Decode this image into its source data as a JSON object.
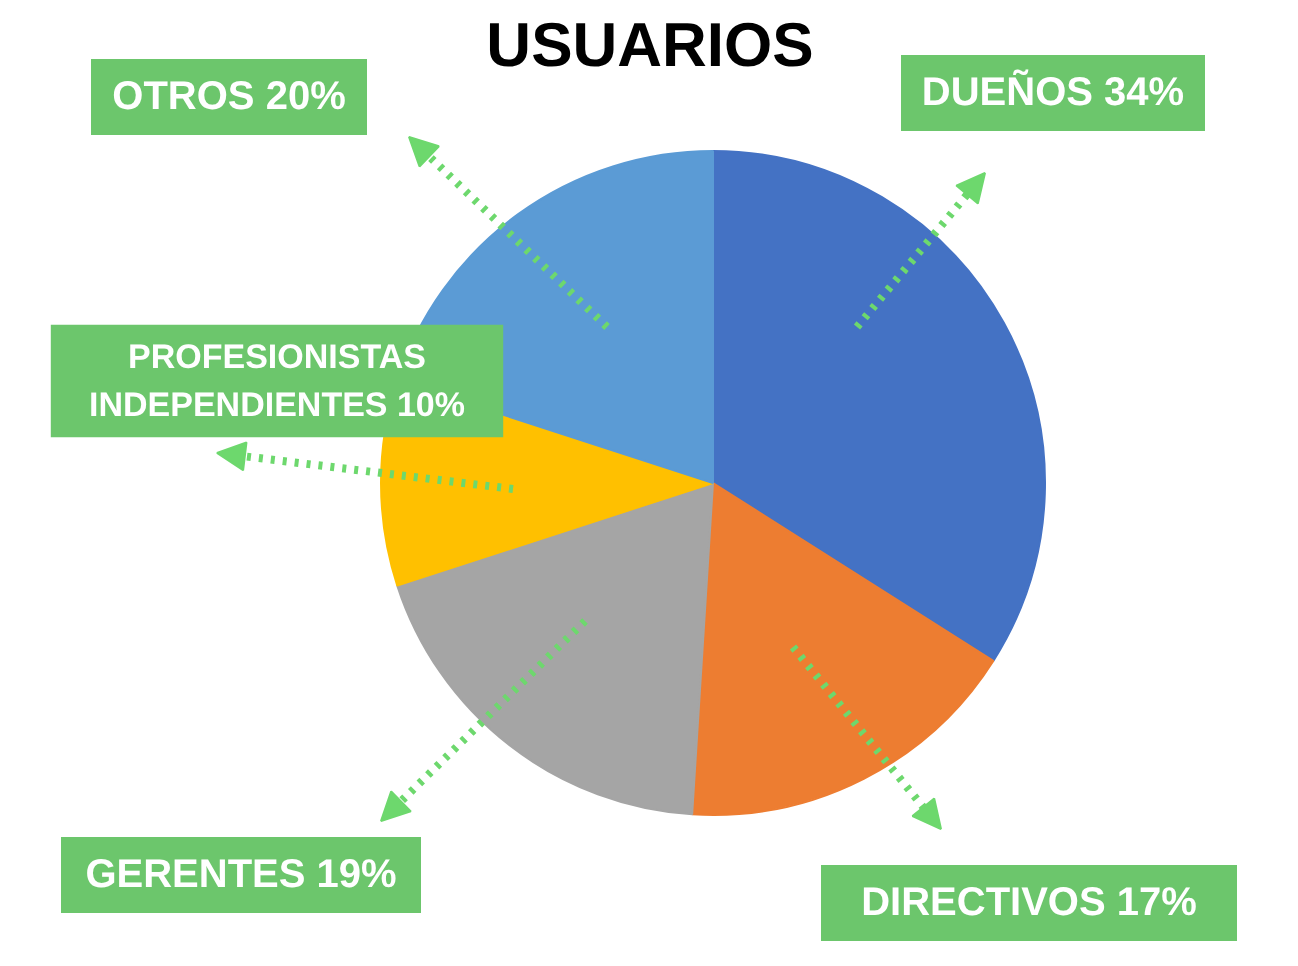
{
  "chart_data": {
    "type": "pie",
    "title": "USUARIOS",
    "categories": [
      "DUEÑOS",
      "DIRECTIVOS",
      "GERENTES",
      "PROFESIONISTAS INDEPENDIENTES",
      "OTROS"
    ],
    "values": [
      34,
      17,
      19,
      10,
      20
    ],
    "value_labels": [
      "34%",
      "17%",
      "19%",
      "10%",
      "20%"
    ],
    "colors": [
      "#4472c4",
      "#ed7d31",
      "#a5a5a5",
      "#ffc000",
      "#5b9bd5"
    ]
  }
}
